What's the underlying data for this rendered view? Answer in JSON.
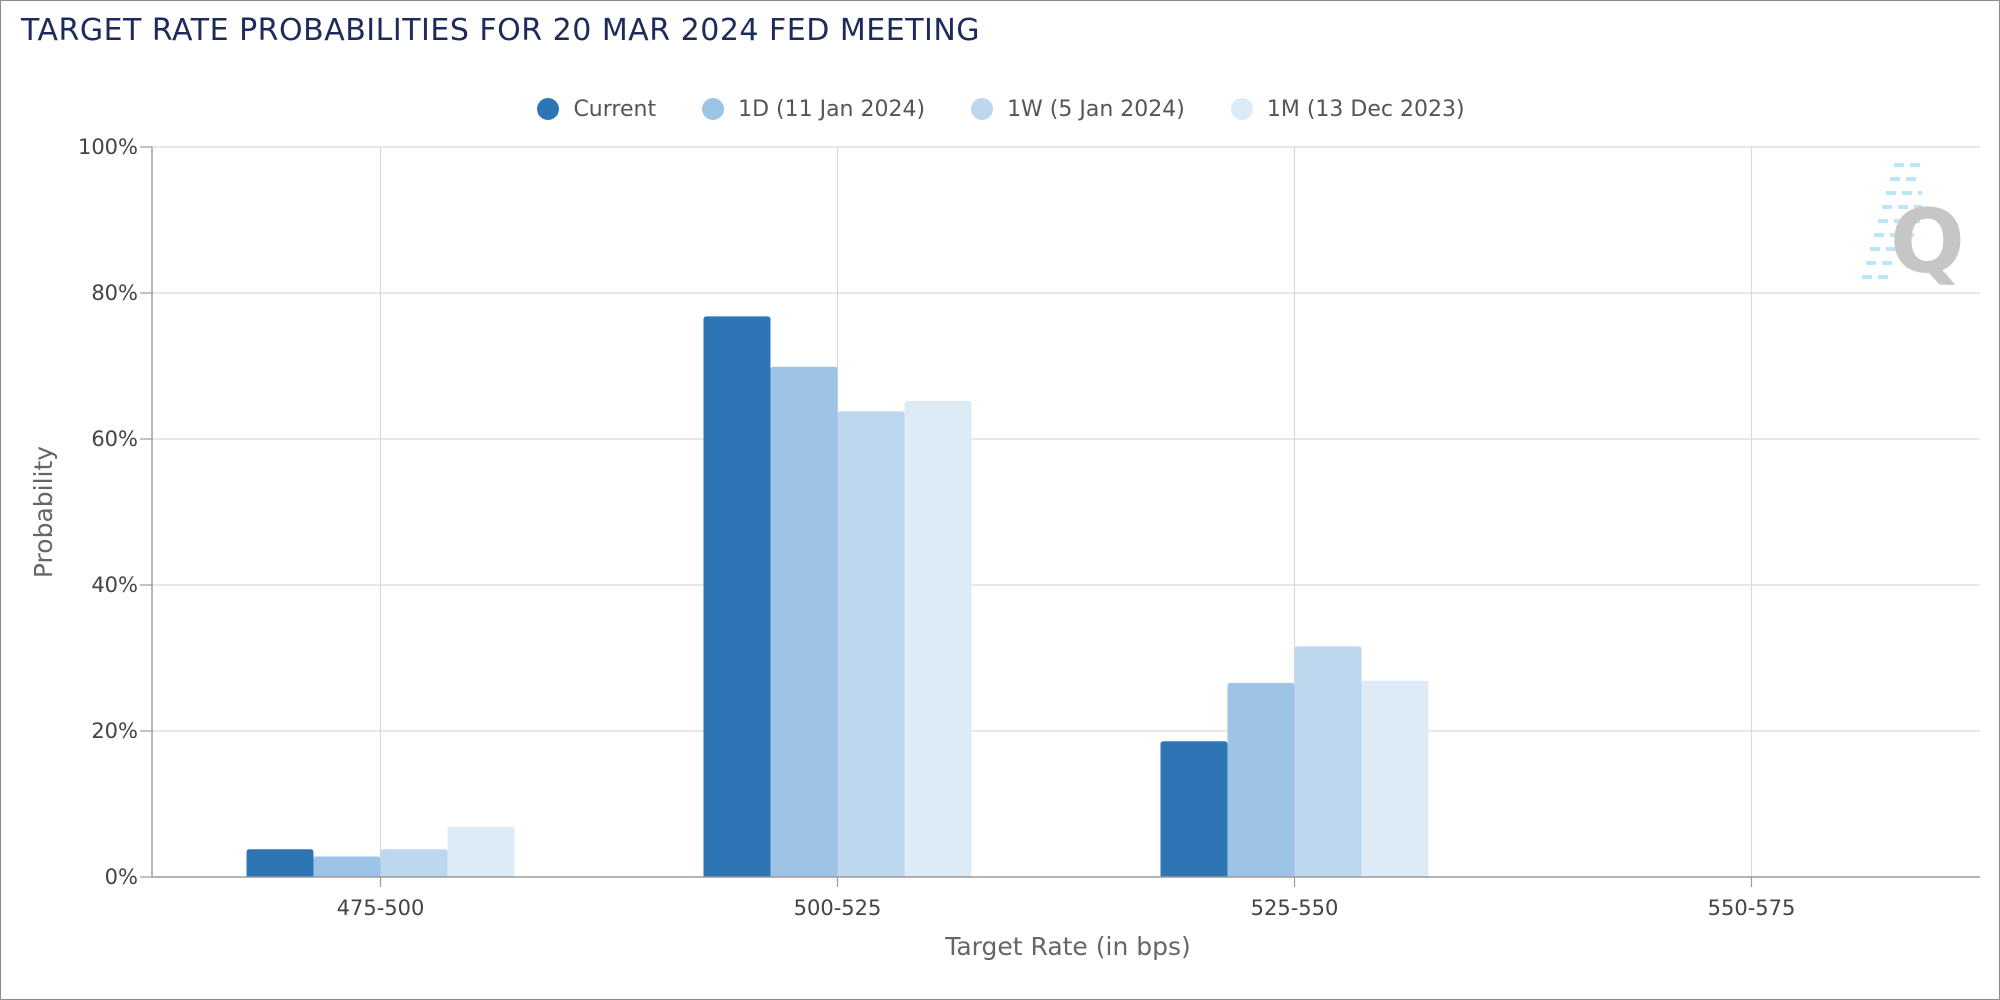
{
  "chart_data": {
    "type": "bar",
    "title": "TARGET RATE PROBABILITIES FOR 20 MAR 2024 FED MEETING",
    "xlabel": "Target Rate (in bps)",
    "ylabel": "Probability",
    "categories": [
      "475-500",
      "500-525",
      "525-550",
      "550-575"
    ],
    "ylim": [
      0,
      100
    ],
    "yticks": [
      "0%",
      "20%",
      "40%",
      "60%",
      "80%",
      "100%"
    ],
    "grid": true,
    "legend_position": "top-center",
    "series": [
      {
        "name": "Current",
        "color": "#2e75b6",
        "values": [
          3.8,
          76.8,
          18.6,
          0
        ]
      },
      {
        "name": "1D (11 Jan 2024)",
        "color": "#9dc3e6",
        "values": [
          2.8,
          69.9,
          26.6,
          0
        ]
      },
      {
        "name": "1W (5 Jan 2024)",
        "color": "#bdd7ee",
        "values": [
          3.8,
          63.8,
          31.6,
          0
        ]
      },
      {
        "name": "1M (13 Dec 2023)",
        "color": "#ddebf7",
        "values": [
          6.9,
          65.2,
          26.9,
          0
        ]
      }
    ]
  },
  "watermark": {
    "icon": "quikstrike-q-logo-icon",
    "letter": "Q"
  }
}
